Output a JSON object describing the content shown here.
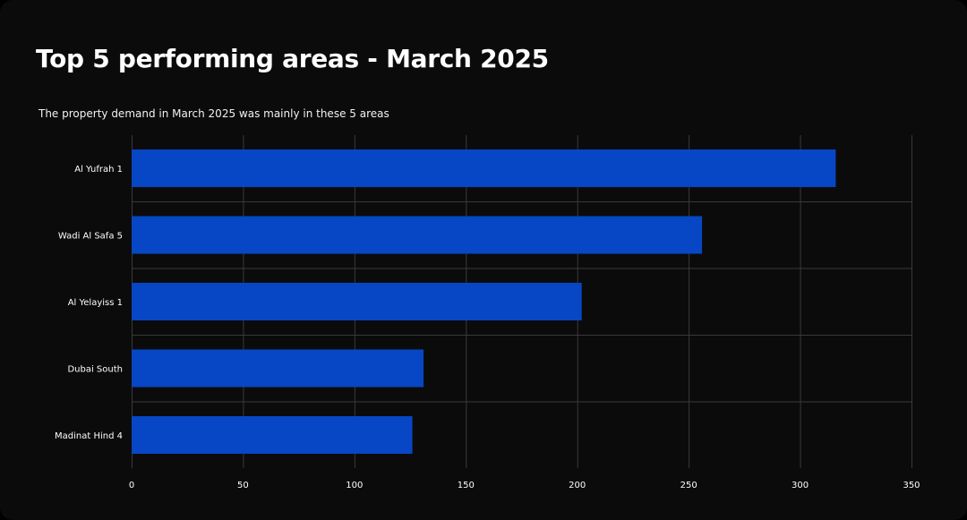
{
  "colors": {
    "background": "#0b0b0c",
    "bar": "#0747c5",
    "grid": "#3a3a3a",
    "text": "#ffffff"
  },
  "header": {
    "title": "Top 5 performing areas - March 2025",
    "subtitle": "The property demand in March 2025 was mainly in these 5 areas"
  },
  "chart_data": {
    "type": "bar",
    "orientation": "horizontal",
    "title": "Top 5 performing areas - March 2025",
    "subtitle": "The property demand in March 2025 was mainly in these 5 areas",
    "xlabel": "",
    "ylabel": "",
    "categories": [
      "Al Yufrah 1",
      "Wadi Al Safa 5",
      "Al Yelayiss 1",
      "Dubai South",
      "Madinat Hind 4"
    ],
    "values": [
      316,
      256,
      202,
      131,
      126
    ],
    "xlim": [
      0,
      350
    ],
    "xticks": [
      0,
      50,
      100,
      150,
      200,
      250,
      300,
      350
    ],
    "grid": true,
    "legend": "none"
  }
}
